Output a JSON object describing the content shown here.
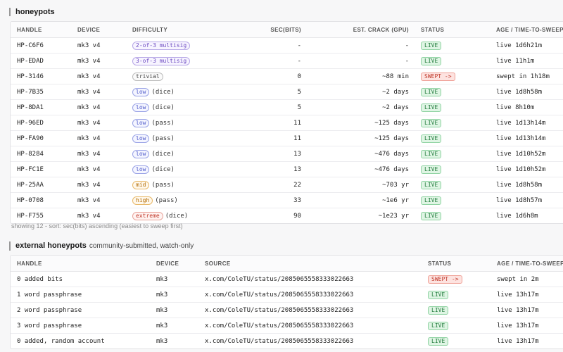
{
  "honeypots": {
    "title": "honeypots",
    "columns": [
      "HANDLE",
      "DEVICE",
      "DIFFICULTY",
      "SEC(BITS)",
      "EST. CRACK (GPU)",
      "STATUS",
      "AGE / TIME-TO-SWEEP"
    ],
    "rows": [
      {
        "handle": "HP-C6F6",
        "device": "mk3 v4",
        "diff_badge": "2-of-3 multisig",
        "diff_color": "purple",
        "diff_extra": "",
        "bits": "-",
        "crack": "-",
        "status": "LIVE",
        "status_kind": "live",
        "age": "live 1d6h21m"
      },
      {
        "handle": "HP-EDAD",
        "device": "mk3 v4",
        "diff_badge": "3-of-3 multisig",
        "diff_color": "purple",
        "diff_extra": "",
        "bits": "-",
        "crack": "-",
        "status": "LIVE",
        "status_kind": "live",
        "age": "live 11h1m"
      },
      {
        "handle": "HP-3146",
        "device": "mk3 v4",
        "diff_badge": "trivial",
        "diff_color": "gray",
        "diff_extra": "",
        "bits": "0",
        "crack": "~88 min",
        "status": "SWEPT ->",
        "status_kind": "swept",
        "age": "swept in 1h18m"
      },
      {
        "handle": "HP-7B35",
        "device": "mk3 v4",
        "diff_badge": "low",
        "diff_color": "blue",
        "diff_extra": "(dice)",
        "bits": "5",
        "crack": "~2 days",
        "status": "LIVE",
        "status_kind": "live",
        "age": "live 1d8h58m"
      },
      {
        "handle": "HP-8DA1",
        "device": "mk3 v4",
        "diff_badge": "low",
        "diff_color": "blue",
        "diff_extra": "(dice)",
        "bits": "5",
        "crack": "~2 days",
        "status": "LIVE",
        "status_kind": "live",
        "age": "live 8h10m"
      },
      {
        "handle": "HP-96ED",
        "device": "mk3 v4",
        "diff_badge": "low",
        "diff_color": "blue",
        "diff_extra": "(pass)",
        "bits": "11",
        "crack": "~125 days",
        "status": "LIVE",
        "status_kind": "live",
        "age": "live 1d13h14m"
      },
      {
        "handle": "HP-FA90",
        "device": "mk3 v4",
        "diff_badge": "low",
        "diff_color": "blue",
        "diff_extra": "(pass)",
        "bits": "11",
        "crack": "~125 days",
        "status": "LIVE",
        "status_kind": "live",
        "age": "live 1d13h14m"
      },
      {
        "handle": "HP-8284",
        "device": "mk3 v4",
        "diff_badge": "low",
        "diff_color": "blue",
        "diff_extra": "(dice)",
        "bits": "13",
        "crack": "~476 days",
        "status": "LIVE",
        "status_kind": "live",
        "age": "live 1d10h52m"
      },
      {
        "handle": "HP-FC1E",
        "device": "mk3 v4",
        "diff_badge": "low",
        "diff_color": "blue",
        "diff_extra": "(dice)",
        "bits": "13",
        "crack": "~476 days",
        "status": "LIVE",
        "status_kind": "live",
        "age": "live 1d10h52m"
      },
      {
        "handle": "HP-25AA",
        "device": "mk3 v4",
        "diff_badge": "mid",
        "diff_color": "orange",
        "diff_extra": "(pass)",
        "bits": "22",
        "crack": "~703 yr",
        "status": "LIVE",
        "status_kind": "live",
        "age": "live 1d8h58m"
      },
      {
        "handle": "HP-0708",
        "device": "mk3 v4",
        "diff_badge": "high",
        "diff_color": "orange",
        "diff_extra": "(pass)",
        "bits": "33",
        "crack": "~1e6 yr",
        "status": "LIVE",
        "status_kind": "live",
        "age": "live 1d8h57m"
      },
      {
        "handle": "HP-F755",
        "device": "mk3 v4",
        "diff_badge": "extreme",
        "diff_color": "red",
        "diff_extra": "(dice)",
        "bits": "90",
        "crack": "~1e23 yr",
        "status": "LIVE",
        "status_kind": "live",
        "age": "live 1d6h8m"
      }
    ],
    "footer_note": "showing 12 - sort: sec(bits) ascending (easiest to sweep first)"
  },
  "external": {
    "title": "external honeypots",
    "subtitle": "community-submitted, watch-only",
    "columns": [
      "HANDLE",
      "DEVICE",
      "SOURCE",
      "STATUS",
      "AGE / TIME-TO-SWEEP"
    ],
    "rows": [
      {
        "handle": "0 added bits",
        "device": "mk3",
        "source": "x.com/ColeTU/status/2085065558333022663",
        "status": "SWEPT ->",
        "status_kind": "swept",
        "age": "swept in 2m"
      },
      {
        "handle": "1 word passphrase",
        "device": "mk3",
        "source": "x.com/ColeTU/status/2085065558333022663",
        "status": "LIVE",
        "status_kind": "live",
        "age": "live 13h17m"
      },
      {
        "handle": "2 word passphrase",
        "device": "mk3",
        "source": "x.com/ColeTU/status/2085065558333022663",
        "status": "LIVE",
        "status_kind": "live",
        "age": "live 13h17m"
      },
      {
        "handle": "3 word passphrase",
        "device": "mk3",
        "source": "x.com/ColeTU/status/2085065558333022663",
        "status": "LIVE",
        "status_kind": "live",
        "age": "live 13h17m"
      },
      {
        "handle": "0 added, random account",
        "device": "mk3",
        "source": "x.com/ColeTU/status/2085065558333022663",
        "status": "LIVE",
        "status_kind": "live",
        "age": "live 13h17m"
      }
    ]
  }
}
